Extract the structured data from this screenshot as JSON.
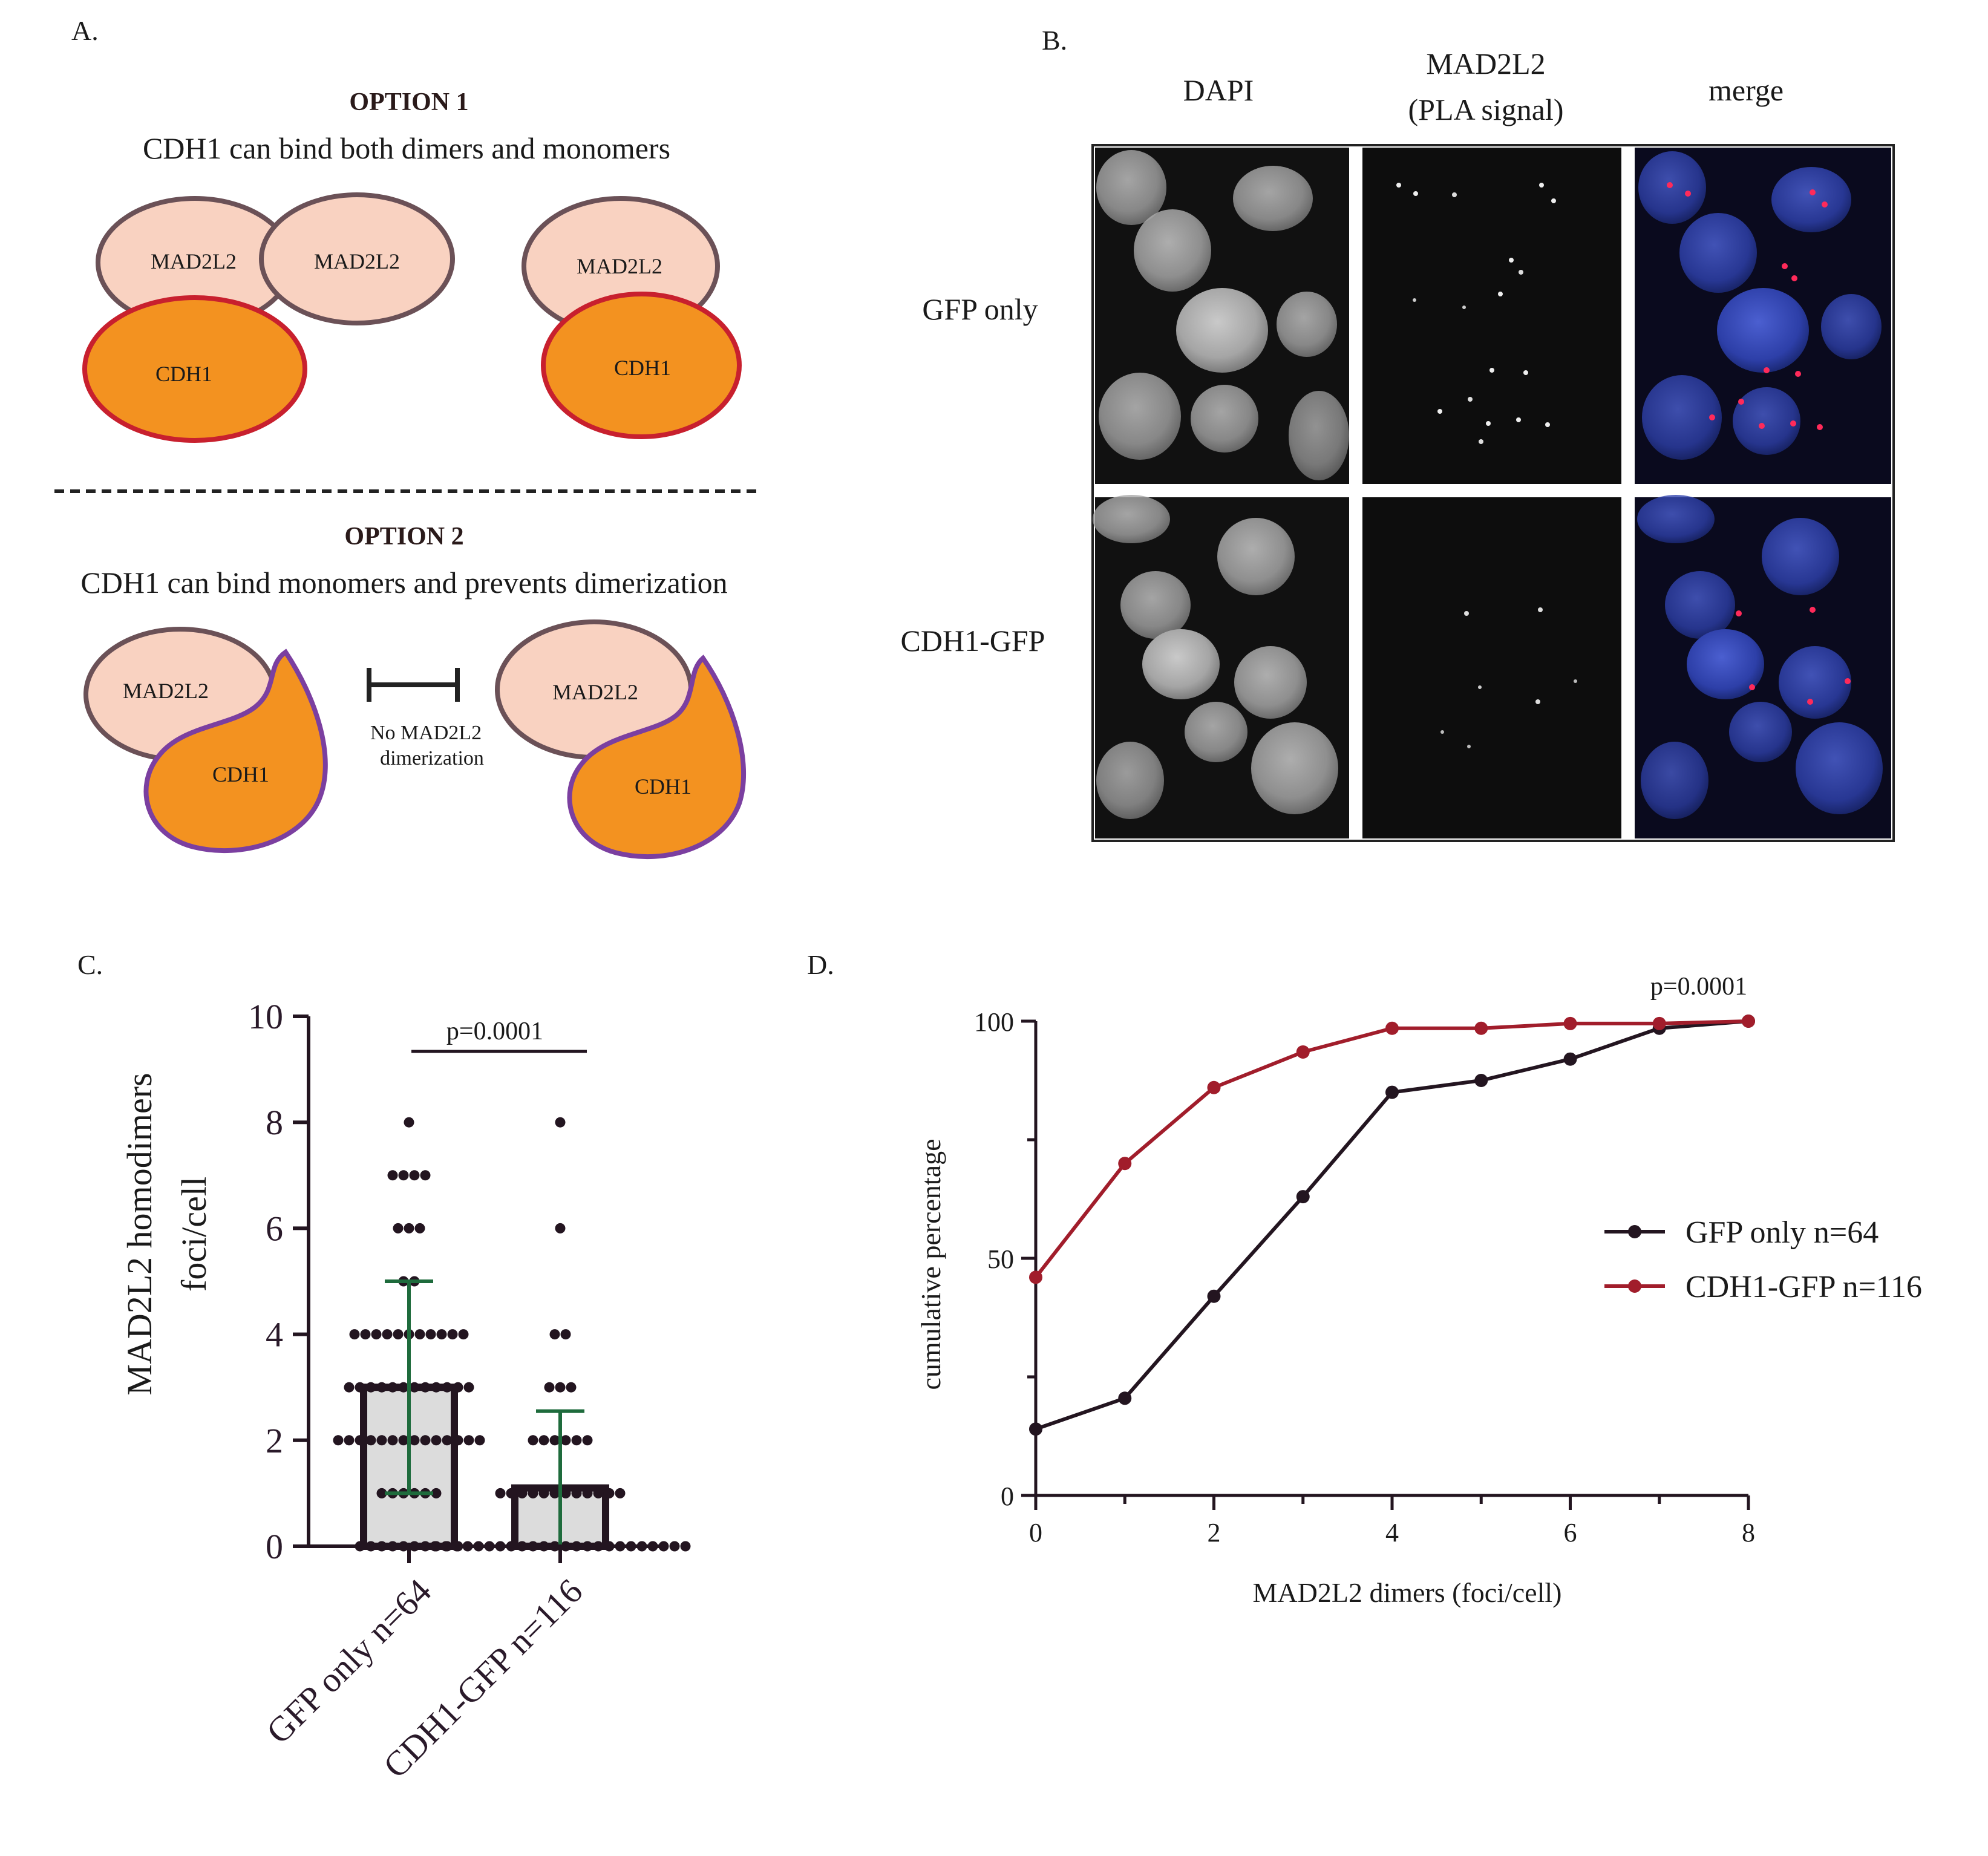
{
  "panel_a": {
    "label": "A.",
    "option1": {
      "title": "OPTION 1",
      "description": "CDH1 can bind both dimers and monomers",
      "labels": [
        "MAD2L2",
        "MAD2L2",
        "CDH1",
        "MAD2L2",
        "CDH1"
      ]
    },
    "option2": {
      "title": "OPTION 2",
      "description": "CDH1 can bind monomers and prevents dimerization",
      "labels": [
        "MAD2L2",
        "CDH1",
        "MAD2L2",
        "CDH1"
      ],
      "inhibition_text": [
        "No MAD2L2",
        "dimerization"
      ]
    },
    "colors": {
      "mad2l2_fill": "#f9d2c1",
      "mad2l2_stroke": "#6b5157",
      "cdh1_fill": "#f39220",
      "cdh1_stroke_opt1": "#c8202e",
      "cdh1_stroke_opt2": "#7b3fa0"
    }
  },
  "panel_b": {
    "label": "B.",
    "columns": [
      "DAPI",
      "MAD2L2\n(PLA signal)",
      "merge"
    ],
    "column_lines": {
      "col1_line1": "MAD2L2",
      "col1_line2": "(PLA signal)"
    },
    "rows": [
      "GFP only",
      "CDH1-GFP"
    ]
  },
  "chart_data": [
    {
      "panel": "C.",
      "type": "bar",
      "title": "",
      "ylabel": "MAD2L2 homodimers\nfoci/cell",
      "ylabel_lines": [
        "MAD2L2 homodimers",
        "foci/cell"
      ],
      "ylim": [
        0,
        10
      ],
      "yticks": [
        "0",
        "2",
        "4",
        "6",
        "8",
        "10"
      ],
      "categories": [
        "GFP only n=64",
        "CDH1-GFP n=116"
      ],
      "values": [
        3.0,
        1.1
      ],
      "error_bars": [
        [
          1.0,
          5.0
        ],
        [
          0,
          2.55
        ]
      ],
      "points": [
        [
          0,
          0,
          0,
          0,
          0,
          0,
          0,
          0,
          0,
          0,
          1,
          1,
          1,
          1,
          1,
          1,
          2,
          2,
          2,
          2,
          2,
          2,
          2,
          2,
          2,
          2,
          2,
          2,
          2,
          2,
          3,
          3,
          3,
          3,
          3,
          3,
          3,
          3,
          3,
          3,
          3,
          3,
          4,
          4,
          4,
          4,
          4,
          4,
          4,
          4,
          4,
          4,
          4,
          5,
          5,
          6,
          6,
          6,
          7,
          7,
          7,
          7,
          8
        ],
        [
          0,
          0,
          0,
          0,
          0,
          0,
          0,
          0,
          0,
          0,
          0,
          0,
          0,
          0,
          0,
          0,
          0,
          0,
          0,
          0,
          0,
          0,
          0,
          0,
          1,
          1,
          1,
          1,
          1,
          1,
          1,
          1,
          1,
          1,
          1,
          1,
          2,
          2,
          2,
          2,
          2,
          2,
          3,
          3,
          3,
          4,
          4,
          6,
          8
        ]
      ],
      "significance": "p=0.0001",
      "bar_fill": "#dcdcdc",
      "bar_stroke": "#231520",
      "error_color": "#1e6b3c",
      "point_color": "#231520"
    },
    {
      "panel": "D.",
      "type": "line",
      "title": "",
      "xlabel": "MAD2L2 dimers (foci/cell)",
      "ylabel": "cumulative percentage",
      "xlim": [
        0,
        8
      ],
      "ylim": [
        0,
        100
      ],
      "xticks": [
        "0",
        "2",
        "4",
        "6",
        "8"
      ],
      "yticks": [
        "0",
        "50",
        "100"
      ],
      "x": [
        0,
        1,
        2,
        3,
        4,
        5,
        6,
        7,
        8
      ],
      "series": [
        {
          "name": "GFP only n=64",
          "color": "#231520",
          "values": [
            14,
            20.5,
            42,
            63,
            85,
            87.5,
            92,
            98.5,
            100
          ]
        },
        {
          "name": "CDH1-GFP n=116",
          "color": "#a11d2b",
          "values": [
            46,
            70,
            86,
            93.5,
            98.5,
            98.5,
            99.5,
            99.5,
            100
          ]
        }
      ],
      "significance": "p=0.0001",
      "legend": "right"
    }
  ]
}
